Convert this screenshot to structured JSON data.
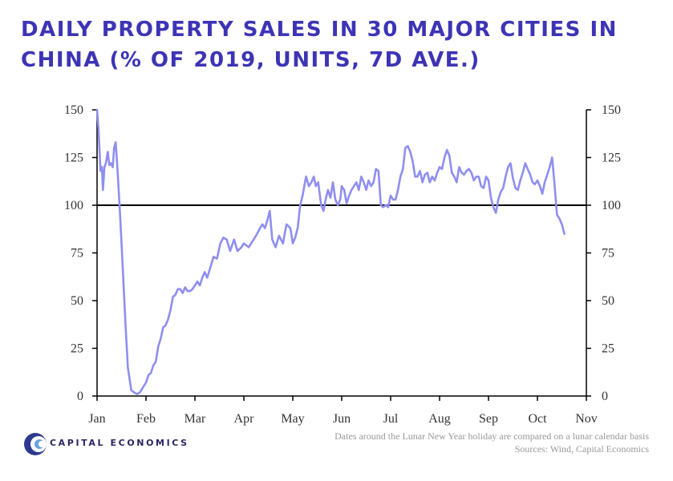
{
  "chart_data": {
    "type": "line",
    "title": "DAILY PROPERTY SALES IN 30 MAJOR CITIES IN CHINA (% OF 2019, UNITS, 7D AVE.)",
    "xlabel": "",
    "ylabel": "",
    "ylim": [
      0,
      150
    ],
    "yticks": [
      0,
      25,
      50,
      75,
      100,
      125,
      150
    ],
    "x_tick_labels": [
      "Jan",
      "Feb",
      "Mar",
      "Apr",
      "May",
      "Jun",
      "Jul",
      "Aug",
      "Sep",
      "Oct",
      "Nov"
    ],
    "xlim_months": [
      0,
      10
    ],
    "reference_line": 100,
    "grid": false,
    "legend": "none",
    "line_color": "#8f8ef0",
    "series": [
      {
        "x": [
          0.0,
          0.03,
          0.07,
          0.1,
          0.12,
          0.15,
          0.18,
          0.22,
          0.25,
          0.28,
          0.3,
          0.32,
          0.35,
          0.38,
          0.42,
          0.47,
          0.52,
          0.58,
          0.63,
          0.7,
          0.75,
          0.82,
          0.88,
          0.95,
          1.0,
          1.05,
          1.1,
          1.15,
          1.2,
          1.25,
          1.3,
          1.35,
          1.4,
          1.45,
          1.5,
          1.55,
          1.6,
          1.65,
          1.7,
          1.75,
          1.8,
          1.85,
          1.9,
          1.95,
          2.0,
          2.05,
          2.1,
          2.15,
          2.2,
          2.25,
          2.3,
          2.38,
          2.45,
          2.52,
          2.58,
          2.65,
          2.72,
          2.8,
          2.87,
          2.95,
          3.0,
          3.05,
          3.1,
          3.15,
          3.2,
          3.27,
          3.33,
          3.38,
          3.43,
          3.48,
          3.53,
          3.58,
          3.65,
          3.72,
          3.8,
          3.87,
          3.95,
          4.0,
          4.05,
          4.1,
          4.15,
          4.2,
          4.27,
          4.33,
          4.38,
          4.43,
          4.47,
          4.52,
          4.58,
          4.63,
          4.67,
          4.72,
          4.77,
          4.82,
          4.87,
          4.92,
          4.97,
          5.0,
          5.05,
          5.1,
          5.15,
          5.2,
          5.25,
          5.3,
          5.35,
          5.4,
          5.45,
          5.5,
          5.55,
          5.6,
          5.65,
          5.7,
          5.75,
          5.8,
          5.85,
          5.9,
          5.95,
          6.0,
          6.05,
          6.1,
          6.15,
          6.2,
          6.25,
          6.3,
          6.35,
          6.4,
          6.45,
          6.5,
          6.55,
          6.6,
          6.65,
          6.7,
          6.75,
          6.8,
          6.85,
          6.9,
          6.95,
          7.0,
          7.05,
          7.1,
          7.15,
          7.2,
          7.25,
          7.3,
          7.35,
          7.4,
          7.45,
          7.5,
          7.55,
          7.6,
          7.65,
          7.7,
          7.75,
          7.8,
          7.85,
          7.9,
          7.95,
          8.0,
          8.05,
          8.1,
          8.15,
          8.2,
          8.25,
          8.3,
          8.35,
          8.4,
          8.45,
          8.5,
          8.55,
          8.6,
          8.65,
          8.7,
          8.75,
          8.8,
          8.85,
          8.9,
          8.95,
          9.0,
          9.05,
          9.1,
          9.15,
          9.2,
          9.25,
          9.3,
          9.35,
          9.4,
          9.45,
          9.5,
          9.55
        ],
        "y": [
          150,
          140,
          118,
          120,
          108,
          120,
          122,
          128,
          121,
          122,
          121,
          120,
          130,
          133,
          118,
          95,
          70,
          38,
          15,
          3,
          2,
          1,
          2,
          5,
          7,
          11,
          12,
          16,
          18,
          26,
          30,
          36,
          37,
          40,
          45,
          52,
          53,
          56,
          56,
          54,
          57,
          55,
          55,
          56,
          58,
          60,
          58,
          62,
          65,
          62,
          66,
          73,
          72,
          80,
          83,
          82,
          76,
          82,
          76,
          78,
          80,
          79,
          78,
          80,
          82,
          85,
          88,
          90,
          88,
          92,
          97,
          82,
          78,
          84,
          80,
          90,
          88,
          80,
          83,
          88,
          100,
          105,
          115,
          110,
          112,
          115,
          110,
          112,
          100,
          97,
          103,
          108,
          104,
          112,
          103,
          100,
          103,
          110,
          108,
          101,
          105,
          108,
          110,
          112,
          108,
          115,
          112,
          108,
          113,
          110,
          112,
          119,
          118,
          100,
          99,
          100,
          99,
          105,
          103,
          103,
          108,
          115,
          119,
          130,
          131,
          128,
          123,
          115,
          115,
          118,
          112,
          116,
          117,
          112,
          115,
          113,
          117,
          120,
          119,
          125,
          129,
          126,
          117,
          115,
          112,
          120,
          117,
          116,
          118,
          119,
          117,
          113,
          115,
          115,
          110,
          109,
          115,
          113,
          104,
          99,
          96,
          103,
          107,
          109,
          115,
          120,
          122,
          114,
          109,
          108,
          113,
          117,
          122,
          119,
          116,
          112,
          111,
          113,
          110,
          106,
          112,
          116,
          120,
          125,
          111,
          95,
          93,
          90,
          85
        ]
      }
    ]
  },
  "footnote": "Dates around the Lunar New Year holiday are compared on a lunar calendar basis",
  "sources": "Sources: Wind, Capital Economics",
  "logo": {
    "text": "CAPITAL ECONOMICS"
  }
}
